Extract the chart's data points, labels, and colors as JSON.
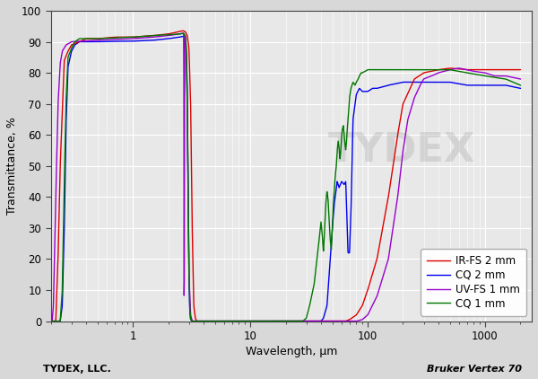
{
  "xlabel": "Wavelength, μm",
  "ylabel": "Transmittance, %",
  "xlim": [
    0.2,
    2500
  ],
  "ylim": [
    0,
    100
  ],
  "yticks": [
    0,
    10,
    20,
    30,
    40,
    50,
    60,
    70,
    80,
    90,
    100
  ],
  "background_color": "#d8d8d8",
  "plot_bg_color": "#e8e8e8",
  "grid_color": "#ffffff",
  "legend_labels": [
    "IR-FS 2 mm",
    "CQ 2 mm",
    "UV-FS 1 mm",
    "CQ 1 mm"
  ],
  "line_colors": [
    "#dd0000",
    "#0000ee",
    "#9900cc",
    "#007700"
  ],
  "watermark": "TYDEX",
  "watermark_color": "#bbbbbb",
  "bottom_left": "TYDEX, LLC.",
  "bottom_right": "Bruker Vertex 70"
}
